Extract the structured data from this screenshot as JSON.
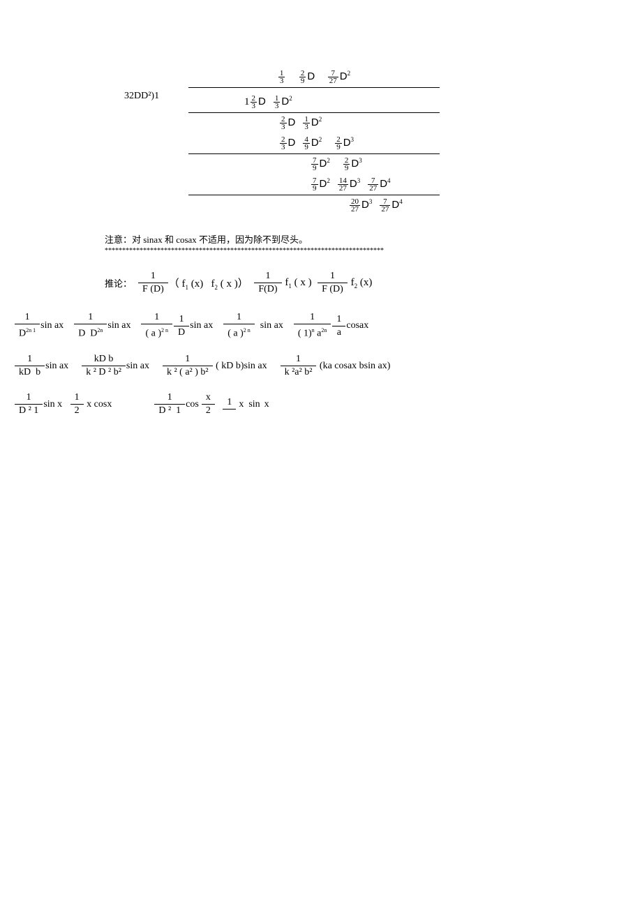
{
  "colors": {
    "text": "#000000",
    "background": "#ffffff",
    "rule": "#000000"
  },
  "fonts": {
    "main": "Times New Roman",
    "cjk": "SimSun",
    "sans": "Arial"
  },
  "quotient": {
    "t1_num": "1",
    "t1_den": "3",
    "t2_num": "2",
    "t2_den": "9",
    "t2_var": "D",
    "t3_num": "7",
    "t3_den": "27",
    "t3_var": "D",
    "t3_exp": "2"
  },
  "divisor": "32DD²)1",
  "rows": [
    {
      "indent": "indent1",
      "cells": [
        "1",
        "frac:2/3",
        "D",
        "sp",
        "frac:1/3",
        "D",
        "sup:2"
      ],
      "bline": true
    },
    {
      "indent": "indent2",
      "cells": [
        "frac:2/3",
        "D",
        "sp",
        "frac:1/3",
        "D",
        "sup:2"
      ]
    },
    {
      "indent": "indent2",
      "cells": [
        "frac:2/3",
        "D",
        "sp",
        "frac:4/9",
        "D",
        "sup:2",
        "spw",
        "frac:2/9",
        "D",
        "sup:3"
      ],
      "bline": true
    },
    {
      "indent": "indent3",
      "cells": [
        "frac:7/9",
        "D",
        "sup:2",
        "spw",
        "frac:2/9",
        "D",
        "sup:3"
      ]
    },
    {
      "indent": "indent3",
      "cells": [
        "frac:7/9",
        "D",
        "sup:2",
        "sp",
        "frac:14/27",
        "D",
        "sup:3",
        "sp",
        "frac:7/27",
        "D",
        "sup:4"
      ],
      "bline": true
    },
    {
      "indent": "indent4",
      "cells": [
        "frac:20/27",
        "D",
        "sup:3",
        "sp",
        "frac:7/27",
        "D",
        "sup:4"
      ]
    }
  ],
  "note": "注意：对 sinax 和 cosax 不适用，因为除不到尽头。",
  "starcount": 80,
  "corollary": {
    "label": "推论：",
    "F": "F",
    "D": "D",
    "lhs_pre": "（",
    "lhs_post": "）",
    "f1": "f",
    "f1sub": "1",
    "f2": "f",
    "f2sub": "2",
    "x": "x"
  },
  "line1": {
    "sin": "sin ax",
    "cos": "cosax",
    "D": "D",
    "a": "a",
    "exp_2n1": "2n 1",
    "exp_2n": "2n",
    "exp_2_n": "2 n",
    "one": "1",
    "minus1n": "( 1)",
    "n": "n"
  },
  "line2": {
    "kD": "kD",
    "b": "b",
    "sin": "sin ax",
    "kDb_num": "kD   b",
    "k2D2b2": "k ² D ²  b²",
    "k2a2b2_paren": "k ² ( a² )   b²",
    "k2a2b2": "k ²a²   b²",
    "kDb_par": "( kD   b)",
    "ka_cos": "(ka cosax  bsin ax)"
  },
  "line3": {
    "left_frac_num": "1",
    "left_frac_den": "D ²   1",
    "sinx": "sin x",
    "half": "1",
    "half_den": "2",
    "xcos": "x cosx",
    "cos": "cos",
    "x": "x",
    "sin": "sin"
  }
}
